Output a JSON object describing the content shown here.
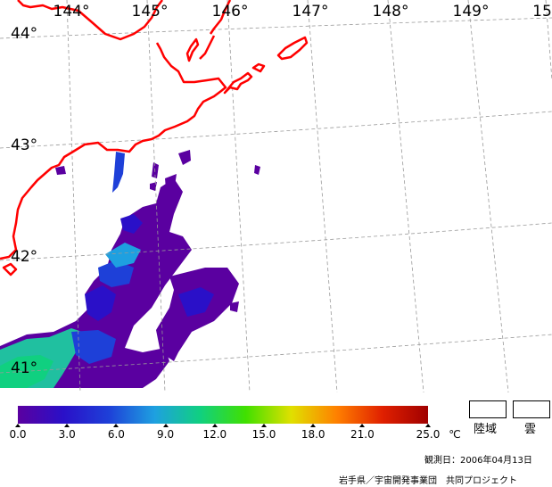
{
  "grid": {
    "longitude_labels": [
      "144°",
      "145°",
      "146°",
      "147°",
      "148°",
      "149°",
      "15"
    ],
    "latitude_labels": [
      "44°",
      "43°",
      "42°",
      "41°"
    ]
  },
  "colorbar": {
    "tick_labels": [
      "0.0",
      "3.0",
      "6.0",
      "9.0",
      "12.0",
      "15.0",
      "18.0",
      "21.0",
      "25.0"
    ],
    "unit": "℃",
    "colors": [
      "#5a00a0",
      "#2a10c8",
      "#1e40d8",
      "#1ea0e0",
      "#10d080",
      "#40e000",
      "#e0e000",
      "#ff8000",
      "#e02000",
      "#a00000"
    ]
  },
  "legend_keys": [
    {
      "label": "陸域"
    },
    {
      "label": "雲"
    }
  ],
  "observation_date": "観測日：2006年04月13日",
  "credit": "岩手県／宇宙開発事業団　共同プロジェクト",
  "colors": {
    "coastline": "#ff0000",
    "graticule": "#999999"
  }
}
